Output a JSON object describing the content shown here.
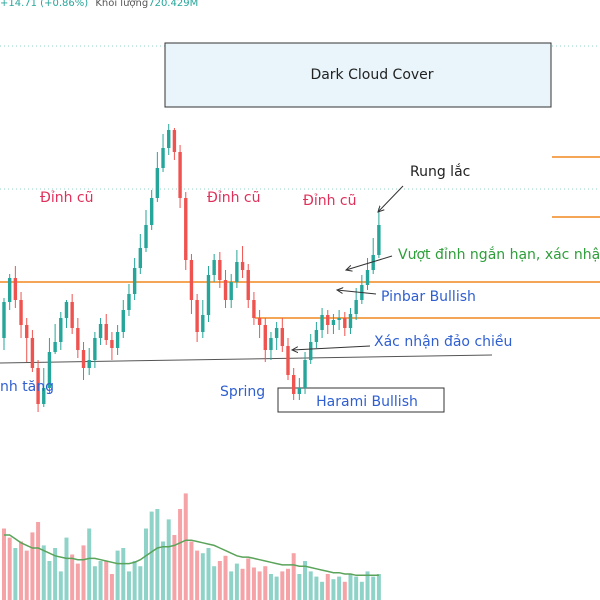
{
  "header": {
    "change": "+14.71 (+0.86%)",
    "volume_label": "Khối lượng",
    "volume_value": "720.429M"
  },
  "colors": {
    "up": "#26a69a",
    "down": "#ef5350",
    "orange_line": "#f0891e",
    "neckline": "#555555",
    "box_fill": "#e9f5fa",
    "box_stroke": "#333333",
    "pink_text": "#e0305a",
    "blue_text": "#2f5fd0",
    "green_text": "#2e9e3a",
    "volume_ma": "#5aa35a",
    "vol_up": "#8fd3c8",
    "vol_down": "#f5a3a7"
  },
  "chart_data": {
    "type": "candlestick",
    "candles": [
      {
        "o": 262,
        "c": 298,
        "h": 302,
        "l": 250
      },
      {
        "o": 298,
        "c": 322,
        "h": 326,
        "l": 290
      },
      {
        "o": 322,
        "c": 300,
        "h": 334,
        "l": 292
      },
      {
        "o": 300,
        "c": 275,
        "h": 308,
        "l": 262
      },
      {
        "o": 275,
        "c": 262,
        "h": 282,
        "l": 238
      },
      {
        "o": 262,
        "c": 232,
        "h": 270,
        "l": 228
      },
      {
        "o": 232,
        "c": 196,
        "h": 240,
        "l": 188
      },
      {
        "o": 196,
        "c": 212,
        "h": 232,
        "l": 193
      },
      {
        "o": 212,
        "c": 248,
        "h": 262,
        "l": 206
      },
      {
        "o": 248,
        "c": 258,
        "h": 276,
        "l": 246
      },
      {
        "o": 258,
        "c": 282,
        "h": 288,
        "l": 250
      },
      {
        "o": 282,
        "c": 298,
        "h": 300,
        "l": 272
      },
      {
        "o": 298,
        "c": 272,
        "h": 306,
        "l": 266
      },
      {
        "o": 272,
        "c": 250,
        "h": 282,
        "l": 242
      },
      {
        "o": 250,
        "c": 232,
        "h": 258,
        "l": 220
      },
      {
        "o": 232,
        "c": 240,
        "h": 252,
        "l": 225
      },
      {
        "o": 240,
        "c": 262,
        "h": 268,
        "l": 232
      },
      {
        "o": 262,
        "c": 276,
        "h": 282,
        "l": 255
      },
      {
        "o": 276,
        "c": 260,
        "h": 286,
        "l": 255
      },
      {
        "o": 260,
        "c": 252,
        "h": 268,
        "l": 240
      },
      {
        "o": 252,
        "c": 268,
        "h": 275,
        "l": 245
      },
      {
        "o": 268,
        "c": 290,
        "h": 300,
        "l": 262
      },
      {
        "o": 290,
        "c": 306,
        "h": 316,
        "l": 284
      },
      {
        "o": 306,
        "c": 332,
        "h": 342,
        "l": 300
      },
      {
        "o": 332,
        "c": 352,
        "h": 366,
        "l": 326
      },
      {
        "o": 352,
        "c": 375,
        "h": 390,
        "l": 348
      },
      {
        "o": 375,
        "c": 402,
        "h": 410,
        "l": 370
      },
      {
        "o": 402,
        "c": 432,
        "h": 448,
        "l": 398
      },
      {
        "o": 432,
        "c": 452,
        "h": 466,
        "l": 428
      },
      {
        "o": 452,
        "c": 470,
        "h": 476,
        "l": 445
      },
      {
        "o": 470,
        "c": 448,
        "h": 472,
        "l": 440
      },
      {
        "o": 448,
        "c": 402,
        "h": 455,
        "l": 392
      },
      {
        "o": 402,
        "c": 340,
        "h": 408,
        "l": 330
      },
      {
        "o": 340,
        "c": 300,
        "h": 346,
        "l": 286
      },
      {
        "o": 300,
        "c": 268,
        "h": 306,
        "l": 258
      },
      {
        "o": 268,
        "c": 285,
        "h": 300,
        "l": 262
      },
      {
        "o": 285,
        "c": 325,
        "h": 334,
        "l": 278
      },
      {
        "o": 325,
        "c": 340,
        "h": 346,
        "l": 318
      },
      {
        "o": 340,
        "c": 320,
        "h": 348,
        "l": 312
      },
      {
        "o": 320,
        "c": 300,
        "h": 330,
        "l": 292
      },
      {
        "o": 300,
        "c": 318,
        "h": 326,
        "l": 292
      },
      {
        "o": 318,
        "c": 338,
        "h": 350,
        "l": 312
      },
      {
        "o": 338,
        "c": 330,
        "h": 354,
        "l": 322
      },
      {
        "o": 330,
        "c": 300,
        "h": 336,
        "l": 292
      },
      {
        "o": 300,
        "c": 282,
        "h": 308,
        "l": 275
      },
      {
        "o": 282,
        "c": 275,
        "h": 290,
        "l": 262
      },
      {
        "o": 275,
        "c": 250,
        "h": 282,
        "l": 238
      },
      {
        "o": 250,
        "c": 262,
        "h": 268,
        "l": 240
      },
      {
        "o": 262,
        "c": 272,
        "h": 278,
        "l": 250
      },
      {
        "o": 272,
        "c": 254,
        "h": 282,
        "l": 248
      },
      {
        "o": 254,
        "c": 225,
        "h": 262,
        "l": 220
      },
      {
        "o": 225,
        "c": 206,
        "h": 232,
        "l": 200
      },
      {
        "o": 206,
        "c": 212,
        "h": 222,
        "l": 200
      },
      {
        "o": 212,
        "c": 240,
        "h": 248,
        "l": 206
      },
      {
        "o": 240,
        "c": 258,
        "h": 266,
        "l": 236
      },
      {
        "o": 258,
        "c": 270,
        "h": 278,
        "l": 252
      },
      {
        "o": 270,
        "c": 285,
        "h": 292,
        "l": 262
      },
      {
        "o": 285,
        "c": 275,
        "h": 290,
        "l": 266
      },
      {
        "o": 275,
        "c": 280,
        "h": 286,
        "l": 266
      },
      {
        "o": 280,
        "c": 282,
        "h": 290,
        "l": 270
      },
      {
        "o": 282,
        "c": 272,
        "h": 288,
        "l": 264
      },
      {
        "o": 272,
        "c": 286,
        "h": 292,
        "l": 266
      },
      {
        "o": 286,
        "c": 300,
        "h": 312,
        "l": 280
      },
      {
        "o": 300,
        "c": 315,
        "h": 325,
        "l": 296
      },
      {
        "o": 315,
        "c": 330,
        "h": 342,
        "l": 310
      },
      {
        "o": 330,
        "c": 345,
        "h": 362,
        "l": 326
      },
      {
        "o": 345,
        "c": 375,
        "h": 392,
        "l": 342
      }
    ],
    "volume": [
      {
        "v": 0.55,
        "d": "down"
      },
      {
        "v": 0.48,
        "d": "down"
      },
      {
        "v": 0.4,
        "d": "up"
      },
      {
        "v": 0.45,
        "d": "down"
      },
      {
        "v": 0.38,
        "d": "down"
      },
      {
        "v": 0.52,
        "d": "down"
      },
      {
        "v": 0.6,
        "d": "down"
      },
      {
        "v": 0.42,
        "d": "up"
      },
      {
        "v": 0.3,
        "d": "up"
      },
      {
        "v": 0.4,
        "d": "up"
      },
      {
        "v": 0.22,
        "d": "up"
      },
      {
        "v": 0.48,
        "d": "up"
      },
      {
        "v": 0.35,
        "d": "down"
      },
      {
        "v": 0.28,
        "d": "down"
      },
      {
        "v": 0.42,
        "d": "down"
      },
      {
        "v": 0.55,
        "d": "up"
      },
      {
        "v": 0.26,
        "d": "up"
      },
      {
        "v": 0.3,
        "d": "up"
      },
      {
        "v": 0.3,
        "d": "down"
      },
      {
        "v": 0.2,
        "d": "down"
      },
      {
        "v": 0.38,
        "d": "up"
      },
      {
        "v": 0.4,
        "d": "up"
      },
      {
        "v": 0.22,
        "d": "up"
      },
      {
        "v": 0.3,
        "d": "up"
      },
      {
        "v": 0.26,
        "d": "up"
      },
      {
        "v": 0.55,
        "d": "up"
      },
      {
        "v": 0.68,
        "d": "up"
      },
      {
        "v": 0.7,
        "d": "up"
      },
      {
        "v": 0.45,
        "d": "up"
      },
      {
        "v": 0.62,
        "d": "up"
      },
      {
        "v": 0.5,
        "d": "down"
      },
      {
        "v": 0.7,
        "d": "down"
      },
      {
        "v": 0.82,
        "d": "down"
      },
      {
        "v": 0.45,
        "d": "down"
      },
      {
        "v": 0.38,
        "d": "down"
      },
      {
        "v": 0.36,
        "d": "up"
      },
      {
        "v": 0.4,
        "d": "up"
      },
      {
        "v": 0.26,
        "d": "up"
      },
      {
        "v": 0.3,
        "d": "down"
      },
      {
        "v": 0.34,
        "d": "down"
      },
      {
        "v": 0.22,
        "d": "up"
      },
      {
        "v": 0.28,
        "d": "up"
      },
      {
        "v": 0.24,
        "d": "down"
      },
      {
        "v": 0.32,
        "d": "down"
      },
      {
        "v": 0.25,
        "d": "down"
      },
      {
        "v": 0.22,
        "d": "down"
      },
      {
        "v": 0.26,
        "d": "down"
      },
      {
        "v": 0.2,
        "d": "up"
      },
      {
        "v": 0.18,
        "d": "up"
      },
      {
        "v": 0.22,
        "d": "down"
      },
      {
        "v": 0.24,
        "d": "down"
      },
      {
        "v": 0.36,
        "d": "down"
      },
      {
        "v": 0.2,
        "d": "up"
      },
      {
        "v": 0.3,
        "d": "up"
      },
      {
        "v": 0.22,
        "d": "up"
      },
      {
        "v": 0.18,
        "d": "up"
      },
      {
        "v": 0.14,
        "d": "up"
      },
      {
        "v": 0.2,
        "d": "down"
      },
      {
        "v": 0.16,
        "d": "up"
      },
      {
        "v": 0.18,
        "d": "up"
      },
      {
        "v": 0.14,
        "d": "down"
      },
      {
        "v": 0.2,
        "d": "up"
      },
      {
        "v": 0.18,
        "d": "up"
      },
      {
        "v": 0.14,
        "d": "up"
      },
      {
        "v": 0.22,
        "d": "up"
      },
      {
        "v": 0.18,
        "d": "up"
      },
      {
        "v": 0.2,
        "d": "up"
      }
    ],
    "volume_ma": [
      0.5,
      0.5,
      0.47,
      0.44,
      0.42,
      0.4,
      0.4,
      0.38,
      0.36,
      0.34,
      0.33,
      0.32,
      0.32,
      0.31,
      0.31,
      0.32,
      0.32,
      0.31,
      0.3,
      0.29,
      0.28,
      0.28,
      0.28,
      0.29,
      0.31,
      0.34,
      0.37,
      0.4,
      0.41,
      0.41,
      0.42,
      0.44,
      0.46,
      0.46,
      0.45,
      0.44,
      0.43,
      0.42,
      0.4,
      0.38,
      0.36,
      0.34,
      0.33,
      0.33,
      0.32,
      0.31,
      0.3,
      0.29,
      0.28,
      0.27,
      0.27,
      0.27,
      0.26,
      0.26,
      0.25,
      0.24,
      0.23,
      0.22,
      0.21,
      0.21,
      0.2,
      0.2,
      0.19,
      0.19,
      0.19,
      0.19,
      0.19
    ],
    "levels": {
      "dinh_cu": 318,
      "vuot_dinh": 282,
      "neckline_left": 237,
      "neckline_right": 245,
      "dark_cloud_top": 505,
      "dark_cloud_bottom": 445,
      "dotted_upper": 411
    },
    "annotations": {
      "dark_cloud": "Dark Cloud Cover",
      "dinh_cu": "Đỉnh cũ",
      "rung_lac": "Rung lắc",
      "vuot_dinh": "Vượt đỉnh ngắn hạn, xác nhận",
      "pinbar": "Pinbar Bullish",
      "xac_nhan": "Xác nhận đảo chiều",
      "spring": "Spring",
      "harami": "Harami Bullish",
      "kenh_tang": "nh tăng"
    }
  }
}
